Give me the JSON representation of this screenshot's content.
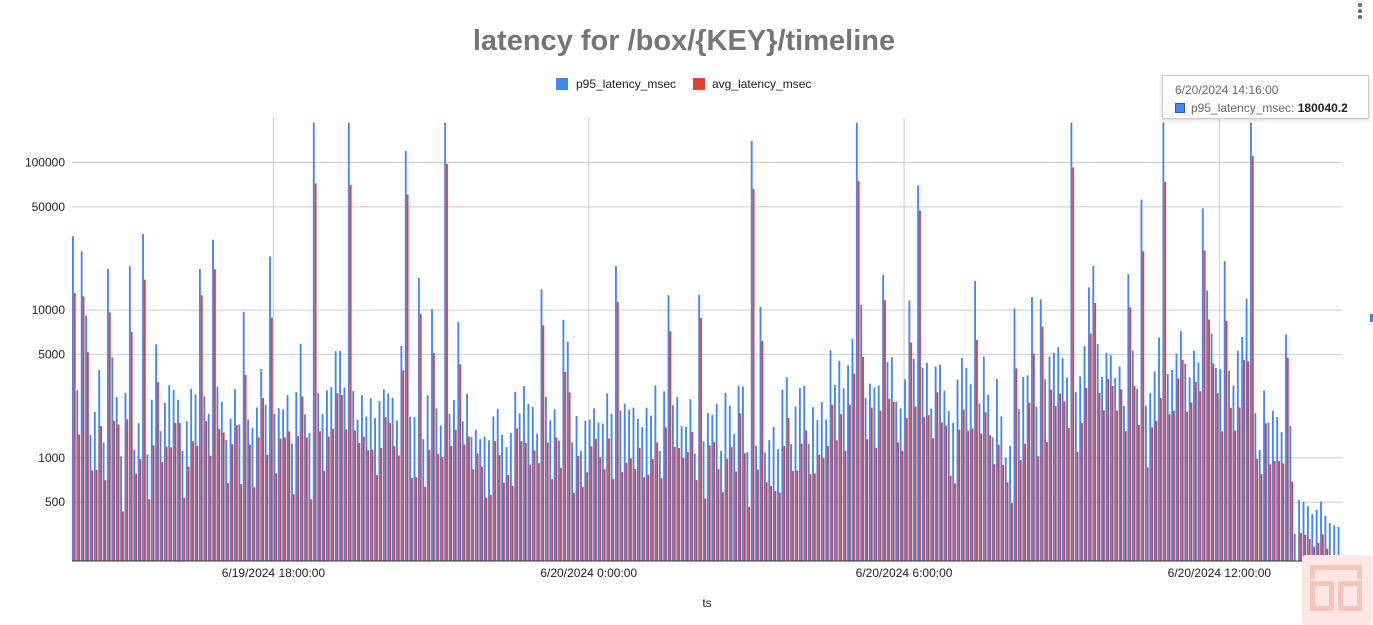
{
  "chart_data": {
    "type": "bar",
    "title": "latency for /box/{KEY}/timeline",
    "xlabel": "ts",
    "ylabel": "",
    "y_scale": "log",
    "ylim": [
      200,
      200000
    ],
    "y_ticks": [
      {
        "value": 500,
        "label": "500"
      },
      {
        "value": 1000,
        "label": "1000"
      },
      {
        "value": 5000,
        "label": "5000"
      },
      {
        "value": 10000,
        "label": "10000"
      },
      {
        "value": 50000,
        "label": "50000"
      },
      {
        "value": 100000,
        "label": "100000"
      }
    ],
    "x_ticks": [
      "6/19/2024 18:00:00",
      "6/20/2024 0:00:00",
      "6/20/2024 6:00:00",
      "6/20/2024 12:00:00"
    ],
    "x_range_hours": [
      "6/19/2024 14:10:00",
      "6/20/2024 14:20:00"
    ],
    "grid": true,
    "legend_position": "top",
    "series": [
      {
        "name": "p95_latency_msec",
        "color": "#4285f4"
      },
      {
        "name": "avg_latency_msec",
        "color": "#db4437"
      }
    ],
    "bar_interval": "5 minutes",
    "profile_note_values": {
      "p95_peaks": [
        {
          "ts": "6/19/2024 14:20:00",
          "value": 25000
        },
        {
          "ts": "6/19/2024 16:50:00",
          "value": 30000
        },
        {
          "ts": "6/19/2024 18:45:00",
          "value": 190000
        },
        {
          "ts": "6/19/2024 19:25:00",
          "value": 190000
        },
        {
          "ts": "6/19/2024 20:30:00",
          "value": 120000
        },
        {
          "ts": "6/19/2024 21:15:00",
          "value": 190000
        },
        {
          "ts": "6/20/2024 3:05:00",
          "value": 140000
        },
        {
          "ts": "6/20/2024 5:05:00",
          "value": 190000
        },
        {
          "ts": "6/20/2024 6:15:00",
          "value": 70000
        },
        {
          "ts": "6/20/2024 9:10:00",
          "value": 190000
        },
        {
          "ts": "6/20/2024 10:55:00",
          "value": 190000
        },
        {
          "ts": "6/20/2024 12:35:00",
          "value": 190000
        },
        {
          "ts": "6/20/2024 13:50:00",
          "value": 190000
        }
      ]
    }
  },
  "tooltip": {
    "time": "6/20/2024 14:16:00",
    "series_label": "p95_latency_msec:",
    "value": "180040.2"
  },
  "legend": [
    {
      "label": "p95_latency_msec",
      "color": "#4285f4"
    },
    {
      "label": "avg_latency_msec",
      "color": "#db4437"
    }
  ]
}
